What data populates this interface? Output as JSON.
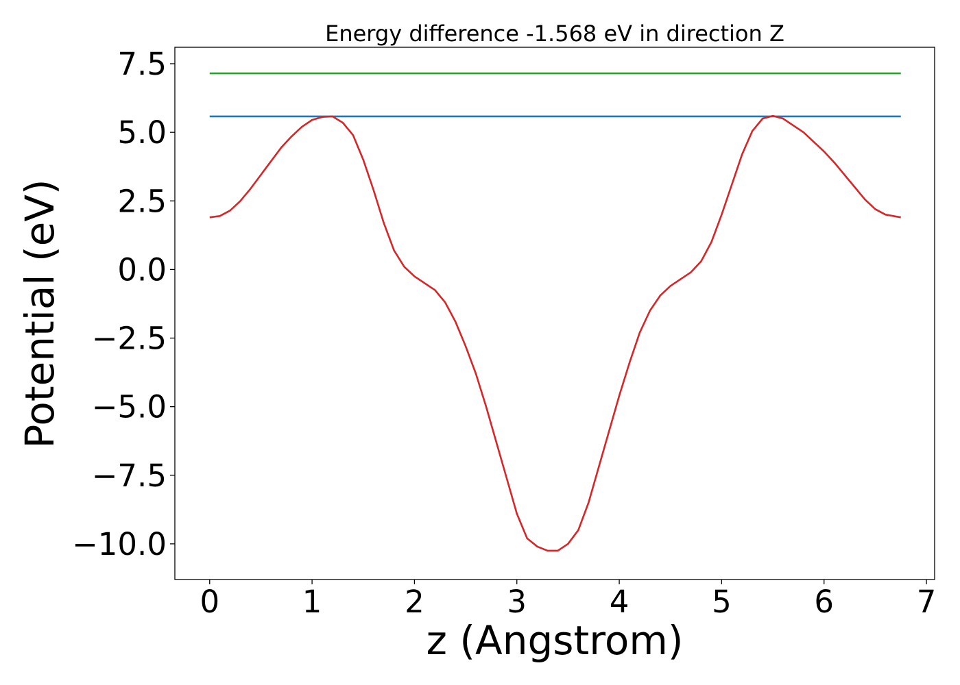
{
  "chart_data": {
    "type": "line",
    "title": "Energy difference -1.568 eV in direction Z",
    "xlabel": "z (Angstrom)",
    "ylabel": "Potential (eV)",
    "xlim": [
      -0.34,
      7.08
    ],
    "ylim": [
      -11.3,
      8.1
    ],
    "xticks": [
      {
        "value": 0,
        "label": "0"
      },
      {
        "value": 1,
        "label": "1"
      },
      {
        "value": 2,
        "label": "2"
      },
      {
        "value": 3,
        "label": "3"
      },
      {
        "value": 4,
        "label": "4"
      },
      {
        "value": 5,
        "label": "5"
      },
      {
        "value": 6,
        "label": "6"
      },
      {
        "value": 7,
        "label": "7"
      }
    ],
    "yticks": [
      {
        "value": 7.5,
        "label": "7.5"
      },
      {
        "value": 5.0,
        "label": "5.0"
      },
      {
        "value": 2.5,
        "label": "2.5"
      },
      {
        "value": 0.0,
        "label": "0.0"
      },
      {
        "value": -2.5,
        "label": "−2.5"
      },
      {
        "value": -5.0,
        "label": "−5.0"
      },
      {
        "value": -7.5,
        "label": "−7.5"
      },
      {
        "value": -10.0,
        "label": "−10.0"
      }
    ],
    "grid": false,
    "series": [
      {
        "color": "#2ca02c",
        "x": [
          0.0,
          6.75
        ],
        "y": [
          7.15,
          7.15
        ]
      },
      {
        "color": "#1f77b4",
        "x": [
          0.0,
          6.75
        ],
        "y": [
          5.58,
          5.58
        ]
      },
      {
        "color": "#d62728",
        "x": [
          0.0,
          0.1,
          0.2,
          0.3,
          0.4,
          0.5,
          0.6,
          0.7,
          0.8,
          0.9,
          1.0,
          1.1,
          1.2,
          1.3,
          1.4,
          1.5,
          1.6,
          1.7,
          1.8,
          1.9,
          2.0,
          2.1,
          2.2,
          2.3,
          2.4,
          2.5,
          2.6,
          2.7,
          2.8,
          2.9,
          3.0,
          3.1,
          3.2,
          3.3,
          3.4,
          3.5,
          3.6,
          3.7,
          3.8,
          3.9,
          4.0,
          4.1,
          4.2,
          4.3,
          4.4,
          4.5,
          4.6,
          4.7,
          4.8,
          4.9,
          5.0,
          5.1,
          5.2,
          5.3,
          5.4,
          5.5,
          5.6,
          5.7,
          5.8,
          5.9,
          6.0,
          6.1,
          6.2,
          6.3,
          6.4,
          6.5,
          6.6,
          6.75
        ],
        "y": [
          1.9,
          1.95,
          2.15,
          2.5,
          2.95,
          3.45,
          3.95,
          4.45,
          4.85,
          5.2,
          5.45,
          5.56,
          5.58,
          5.35,
          4.9,
          4.0,
          2.9,
          1.7,
          0.7,
          0.1,
          -0.25,
          -0.5,
          -0.75,
          -1.2,
          -1.9,
          -2.8,
          -3.8,
          -5.0,
          -6.3,
          -7.6,
          -8.9,
          -9.8,
          -10.1,
          -10.25,
          -10.25,
          -10.0,
          -9.5,
          -8.5,
          -7.2,
          -5.9,
          -4.6,
          -3.4,
          -2.3,
          -1.5,
          -0.95,
          -0.6,
          -0.35,
          -0.1,
          0.3,
          1.0,
          2.0,
          3.1,
          4.2,
          5.05,
          5.5,
          5.6,
          5.5,
          5.25,
          5.0,
          4.65,
          4.3,
          3.9,
          3.45,
          3.0,
          2.55,
          2.2,
          2.0,
          1.9
        ]
      }
    ]
  }
}
